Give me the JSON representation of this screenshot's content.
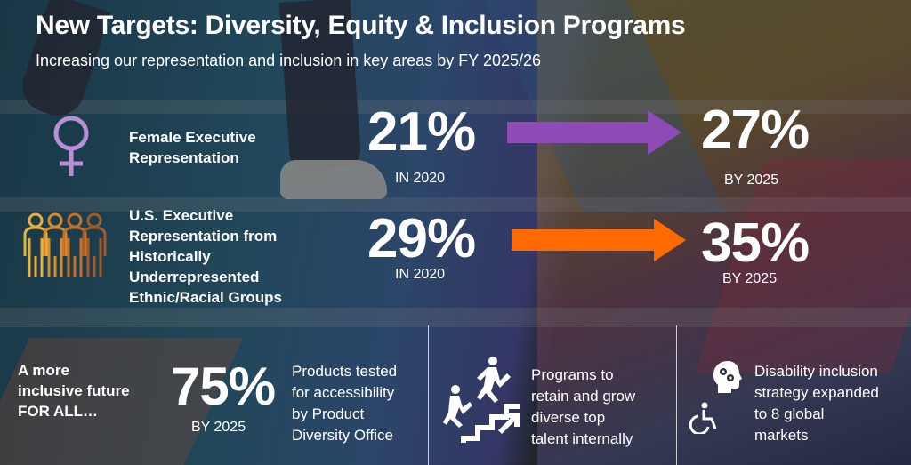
{
  "header": {
    "title": "New Targets: Diversity, Equity & Inclusion Programs",
    "subtitle": "Increasing our representation and inclusion in key areas by FY 2025/26"
  },
  "rows": [
    {
      "icon": "female-symbol-icon",
      "label": "Female Executive Representation",
      "label_lines": [
        "Female Executive",
        "Representation"
      ],
      "from_value": "21%",
      "from_caption": "IN 2020",
      "to_value": "27%",
      "to_caption": "BY 2025",
      "arrow_color": "#8e4bb5"
    },
    {
      "icon": "diverse-people-icon",
      "label": "U.S. Executive Representation from Historically Underrepresented Ethnic/Racial Groups",
      "label_lines": [
        "U.S. Executive",
        "Representation from",
        "Historically",
        "Underrepresented",
        "Ethnic/Racial Groups"
      ],
      "from_value": "29%",
      "from_caption": "IN 2020",
      "to_value": "35%",
      "to_caption": "BY 2025",
      "arrow_color": "#ff6a00"
    }
  ],
  "bottom": {
    "tagline_lines": [
      "A more",
      "inclusive future",
      "FOR ALL…"
    ],
    "stat_value": "75%",
    "stat_caption": "BY 2025",
    "stat_desc_lines": [
      "Products tested",
      "for accessibility",
      "by Product",
      "Diversity Office"
    ],
    "programs_icon": "climbing-stairs-icon",
    "programs_lines": [
      "Programs to",
      "retain and grow",
      "diverse top",
      "talent internally"
    ],
    "disability_icons": [
      "head-gears-icon",
      "wheelchair-icon"
    ],
    "disability_lines": [
      "Disability inclusion",
      "strategy expanded",
      "to 8 global",
      "markets"
    ]
  },
  "colors": {
    "purple": "#8e4bb5",
    "orange": "#ff6a00",
    "female_icon": "#b88fd6",
    "people_icon": [
      "#e8b23a",
      "#d98b2b",
      "#c46f2a",
      "#a25a2a"
    ]
  }
}
